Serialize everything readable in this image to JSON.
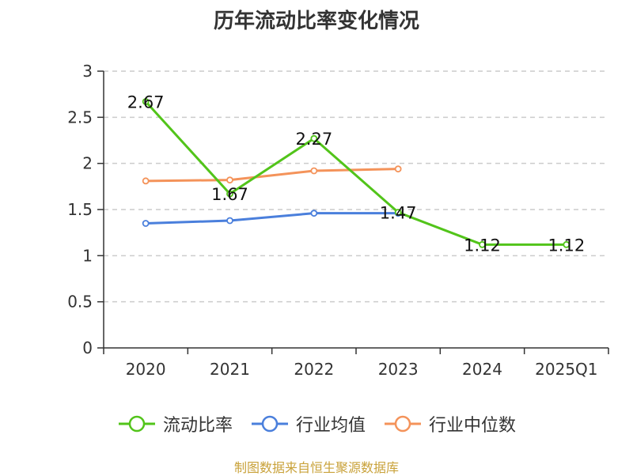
{
  "chart_data": {
    "type": "line",
    "title": "历年流动比率变化情况",
    "categories": [
      "2020",
      "2021",
      "2022",
      "2023",
      "2024",
      "2025Q1"
    ],
    "ylim": [
      0,
      3
    ],
    "yticks": [
      "0",
      "0.5",
      "1",
      "1.5",
      "2",
      "2.5",
      "3"
    ],
    "grid": true,
    "legend_position": "bottom",
    "series": [
      {
        "name": "流动比率",
        "color": "#52c41a",
        "values": [
          2.67,
          1.67,
          2.27,
          1.47,
          1.12,
          1.12
        ],
        "labels": [
          "2.67",
          "1.67",
          "2.27",
          "1.47",
          "1.12",
          "1.12"
        ]
      },
      {
        "name": "行业均值",
        "color": "#4a7fdc",
        "values": [
          1.35,
          1.38,
          1.46,
          1.46,
          null,
          null
        ]
      },
      {
        "name": "行业中位数",
        "color": "#f4935a",
        "values": [
          1.81,
          1.82,
          1.92,
          1.94,
          null,
          null
        ]
      }
    ]
  },
  "source_text": "制图数据来自恒生聚源数据库"
}
